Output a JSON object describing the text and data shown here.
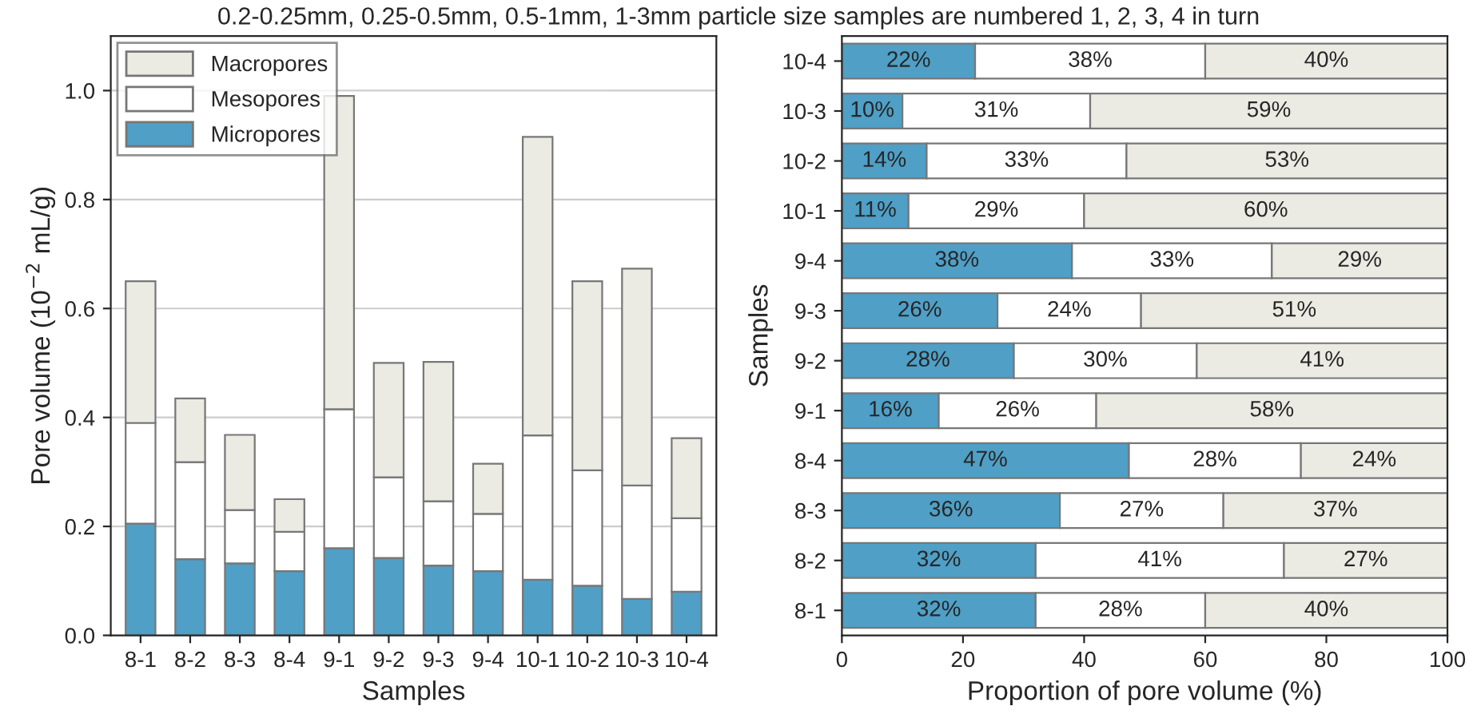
{
  "chart_data": [
    {
      "type": "bar",
      "title": "0.2-0.25mm, 0.25-0.5mm, 0.5-1mm, 1-3mm particle size samples are numbered 1, 2, 3, 4 in turn",
      "xlabel": "Samples",
      "ylabel": "Pore volume (10$^{−2}$ mL/g)",
      "categories": [
        "8-1",
        "8-2",
        "8-3",
        "8-4",
        "9-1",
        "9-2",
        "9-3",
        "9-4",
        "10-1",
        "10-2",
        "10-3",
        "10-4"
      ],
      "stacked": true,
      "ylim": [
        0,
        1.1
      ],
      "yticks": [
        {
          "value": 0,
          "label": "0.0"
        },
        0.2,
        0.4,
        0.6,
        0.8,
        {
          "value": 1,
          "label": "1.0"
        }
      ],
      "grid": "y",
      "legend": "top left",
      "series": [
        {
          "name": "Micropores",
          "color": "#4f9fc6",
          "values": [
            0.205,
            0.14,
            0.132,
            0.118,
            0.16,
            0.142,
            0.128,
            0.118,
            0.102,
            0.091,
            0.067,
            0.08
          ]
        },
        {
          "name": "Mesopores",
          "color": "#ffffff",
          "values": [
            0.185,
            0.178,
            0.098,
            0.072,
            0.255,
            0.148,
            0.118,
            0.105,
            0.265,
            0.212,
            0.208,
            0.135
          ]
        },
        {
          "name": "Macropores",
          "color": "#ebebe4",
          "values": [
            0.26,
            0.117,
            0.138,
            0.06,
            0.575,
            0.21,
            0.256,
            0.092,
            0.548,
            0.347,
            0.398,
            0.147
          ]
        }
      ]
    },
    {
      "type": "bar",
      "orientation": "horizontal",
      "stacked": true,
      "xlabel": "Proportion of pore volume (%)",
      "ylabel": "Samples",
      "categories": [
        "10-4",
        "10-3",
        "10-2",
        "10-1",
        "9-4",
        "9-3",
        "9-2",
        "9-1",
        "8-4",
        "8-3",
        "8-2",
        "8-1"
      ],
      "xlim": [
        0,
        100
      ],
      "xticks": [
        0,
        20,
        40,
        60,
        80,
        100
      ],
      "series": [
        {
          "color": "#4f9fc6",
          "values": [
            22,
            10,
            14,
            11,
            38,
            25.7,
            28.4,
            16,
            47.4,
            36,
            32,
            32
          ],
          "value_labels": [
            "22%",
            "10%",
            "14%",
            "11%",
            "38%",
            "26%",
            "28%",
            "16%",
            "47%",
            "36%",
            "32%",
            "32%"
          ]
        },
        {
          "color": "#ffffff",
          "values": [
            38,
            31,
            33,
            29,
            33,
            23.7,
            30.2,
            26,
            28.4,
            27,
            41,
            28
          ],
          "value_labels": [
            "38%",
            "31%",
            "33%",
            "29%",
            "33%",
            "24%",
            "30%",
            "26%",
            "28%",
            "27%",
            "41%",
            "28%"
          ]
        },
        {
          "color": "#ebebe4",
          "values": [
            40,
            59,
            53,
            60,
            29,
            50.6,
            41.4,
            58,
            24.2,
            37,
            27,
            40
          ],
          "value_labels": [
            "40%",
            "59%",
            "53%",
            "60%",
            "29%",
            "51%",
            "41%",
            "58%",
            "24%",
            "37%",
            "27%",
            "40%"
          ]
        }
      ]
    }
  ]
}
